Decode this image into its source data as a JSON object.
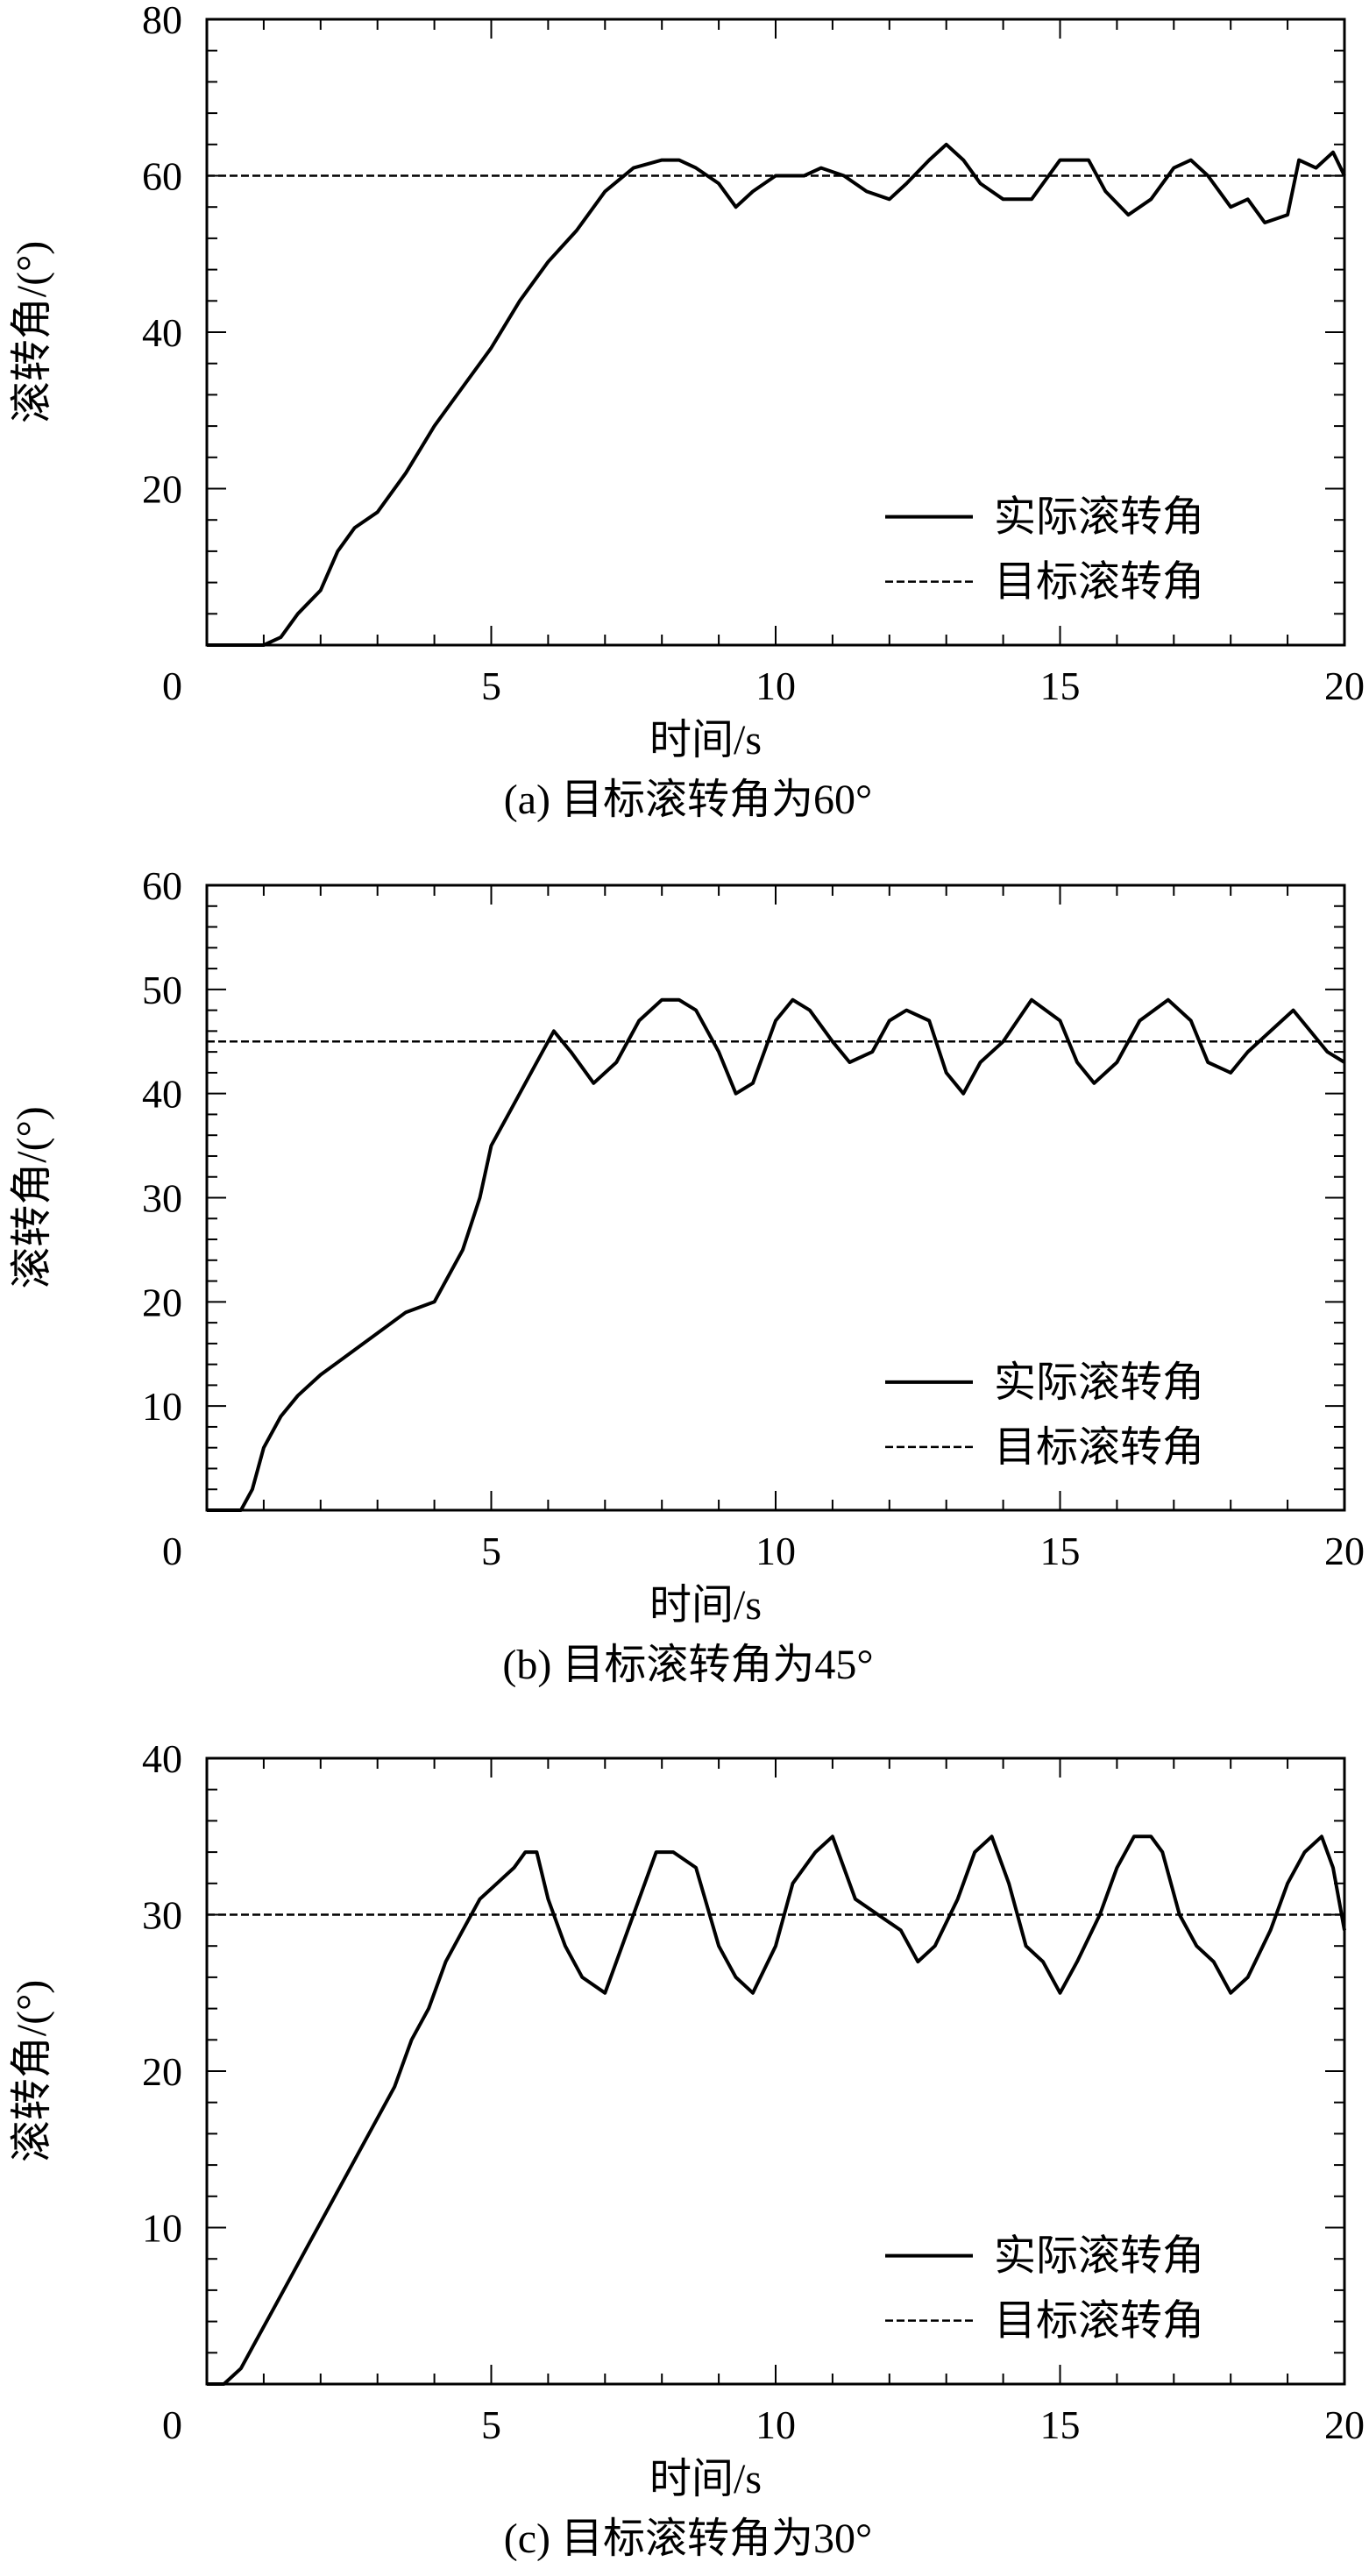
{
  "chart_data": [
    {
      "type": "line",
      "caption": "(a) 目标滚转角为60°",
      "xlabel": "时间/s",
      "ylabel": "滚转角/(°)",
      "xlim": [
        0,
        20
      ],
      "ylim": [
        0,
        80
      ],
      "xticks": [
        0,
        5,
        10,
        15,
        20
      ],
      "yticks": [
        20,
        40,
        60,
        80
      ],
      "origin_label": "0",
      "grid": false,
      "legend_position": "right-lower",
      "series": [
        {
          "name": "实际滚转角",
          "style": "solid",
          "x": [
            0,
            0.5,
            1.0,
            1.3,
            1.6,
            2.0,
            2.3,
            2.6,
            3.0,
            3.5,
            4.0,
            4.5,
            5.0,
            5.5,
            6.0,
            6.5,
            7.0,
            7.5,
            8.0,
            8.3,
            8.6,
            9.0,
            9.3,
            9.6,
            10.0,
            10.5,
            10.8,
            11.2,
            11.6,
            12.0,
            12.3,
            12.7,
            13.0,
            13.3,
            13.6,
            14.0,
            14.5,
            15.0,
            15.5,
            15.8,
            16.2,
            16.6,
            17.0,
            17.3,
            17.6,
            18.0,
            18.3,
            18.6,
            19.0,
            19.2,
            19.5,
            19.8,
            20.0
          ],
          "y": [
            0,
            0,
            0,
            1,
            4,
            7,
            12,
            15,
            17,
            22,
            28,
            33,
            38,
            44,
            49,
            53,
            58,
            61,
            62,
            62,
            61,
            59,
            56,
            58,
            60,
            60,
            61,
            60,
            58,
            57,
            59,
            62,
            64,
            62,
            59,
            57,
            57,
            62,
            62,
            58,
            55,
            57,
            61,
            62,
            60,
            56,
            57,
            54,
            55,
            62,
            61,
            63,
            60
          ]
        },
        {
          "name": "目标滚转角",
          "style": "dashed",
          "x": [
            0,
            20
          ],
          "y": [
            60,
            60
          ]
        }
      ]
    },
    {
      "type": "line",
      "caption": "(b) 目标滚转角为45°",
      "xlabel": "时间/s",
      "ylabel": "滚转角/(°)",
      "xlim": [
        0,
        20
      ],
      "ylim": [
        0,
        60
      ],
      "xticks": [
        0,
        5,
        10,
        15,
        20
      ],
      "yticks": [
        10,
        20,
        30,
        40,
        50,
        60
      ],
      "origin_label": "0",
      "grid": false,
      "legend_position": "right-lower",
      "series": [
        {
          "name": "实际滚转角",
          "style": "solid",
          "x": [
            0,
            0.3,
            0.6,
            0.8,
            1.0,
            1.3,
            1.6,
            2.0,
            2.5,
            3.0,
            3.5,
            4.0,
            4.5,
            4.8,
            5.0,
            5.3,
            5.6,
            5.9,
            6.1,
            6.4,
            6.8,
            7.2,
            7.6,
            8.0,
            8.3,
            8.6,
            9.0,
            9.3,
            9.6,
            10.0,
            10.3,
            10.6,
            11.0,
            11.3,
            11.7,
            12.0,
            12.3,
            12.7,
            13.0,
            13.3,
            13.6,
            14.0,
            14.5,
            15.0,
            15.3,
            15.6,
            16.0,
            16.4,
            16.9,
            17.3,
            17.6,
            18.0,
            18.3,
            18.7,
            19.1,
            19.4,
            19.7,
            20.0
          ],
          "y": [
            0,
            0,
            0,
            2,
            6,
            9,
            11,
            13,
            15,
            17,
            19,
            20,
            25,
            30,
            35,
            38,
            41,
            44,
            46,
            44,
            41,
            43,
            47,
            49,
            49,
            48,
            44,
            40,
            41,
            47,
            49,
            48,
            45,
            43,
            44,
            47,
            48,
            47,
            42,
            40,
            43,
            45,
            49,
            47,
            43,
            41,
            43,
            47,
            49,
            47,
            43,
            42,
            44,
            46,
            48,
            46,
            44,
            43
          ]
        },
        {
          "name": "目标滚转角",
          "style": "dashed",
          "x": [
            0,
            20
          ],
          "y": [
            45,
            45
          ]
        }
      ]
    },
    {
      "type": "line",
      "caption": "(c) 目标滚转角为30°",
      "xlabel": "时间/s",
      "ylabel": "滚转角/(°)",
      "xlim": [
        0,
        20
      ],
      "ylim": [
        0,
        40
      ],
      "xticks": [
        0,
        5,
        10,
        15,
        20
      ],
      "yticks": [
        10,
        20,
        30,
        40
      ],
      "origin_label": "0",
      "grid": false,
      "legend_position": "right-lower",
      "series": [
        {
          "name": "实际滚转角",
          "style": "solid",
          "x": [
            0,
            0.3,
            0.6,
            0.9,
            1.2,
            1.5,
            1.8,
            2.1,
            2.4,
            2.7,
            3.0,
            3.3,
            3.6,
            3.9,
            4.2,
            4.5,
            4.8,
            5.1,
            5.4,
            5.6,
            5.8,
            6.0,
            6.3,
            6.6,
            7.0,
            7.3,
            7.6,
            7.9,
            8.2,
            8.6,
            9.0,
            9.3,
            9.6,
            10.0,
            10.3,
            10.7,
            11.0,
            11.4,
            11.8,
            12.2,
            12.5,
            12.8,
            13.2,
            13.5,
            13.8,
            14.1,
            14.4,
            14.7,
            15.0,
            15.3,
            15.7,
            16.0,
            16.3,
            16.6,
            16.8,
            17.1,
            17.4,
            17.7,
            18.0,
            18.3,
            18.7,
            19.0,
            19.3,
            19.6,
            19.8,
            20.0
          ],
          "y": [
            0,
            0,
            1,
            3,
            5,
            7,
            9,
            11,
            13,
            15,
            17,
            19,
            22,
            24,
            27,
            29,
            31,
            32,
            33,
            34,
            34,
            31,
            28,
            26,
            25,
            28,
            31,
            34,
            34,
            33,
            28,
            26,
            25,
            28,
            32,
            34,
            35,
            31,
            30,
            29,
            27,
            28,
            31,
            34,
            35,
            32,
            28,
            27,
            25,
            27,
            30,
            33,
            35,
            35,
            34,
            30,
            28,
            27,
            25,
            26,
            29,
            32,
            34,
            35,
            33,
            29
          ]
        },
        {
          "name": "目标滚转角",
          "style": "dashed",
          "x": [
            0,
            20
          ],
          "y": [
            30,
            30
          ]
        }
      ]
    }
  ]
}
